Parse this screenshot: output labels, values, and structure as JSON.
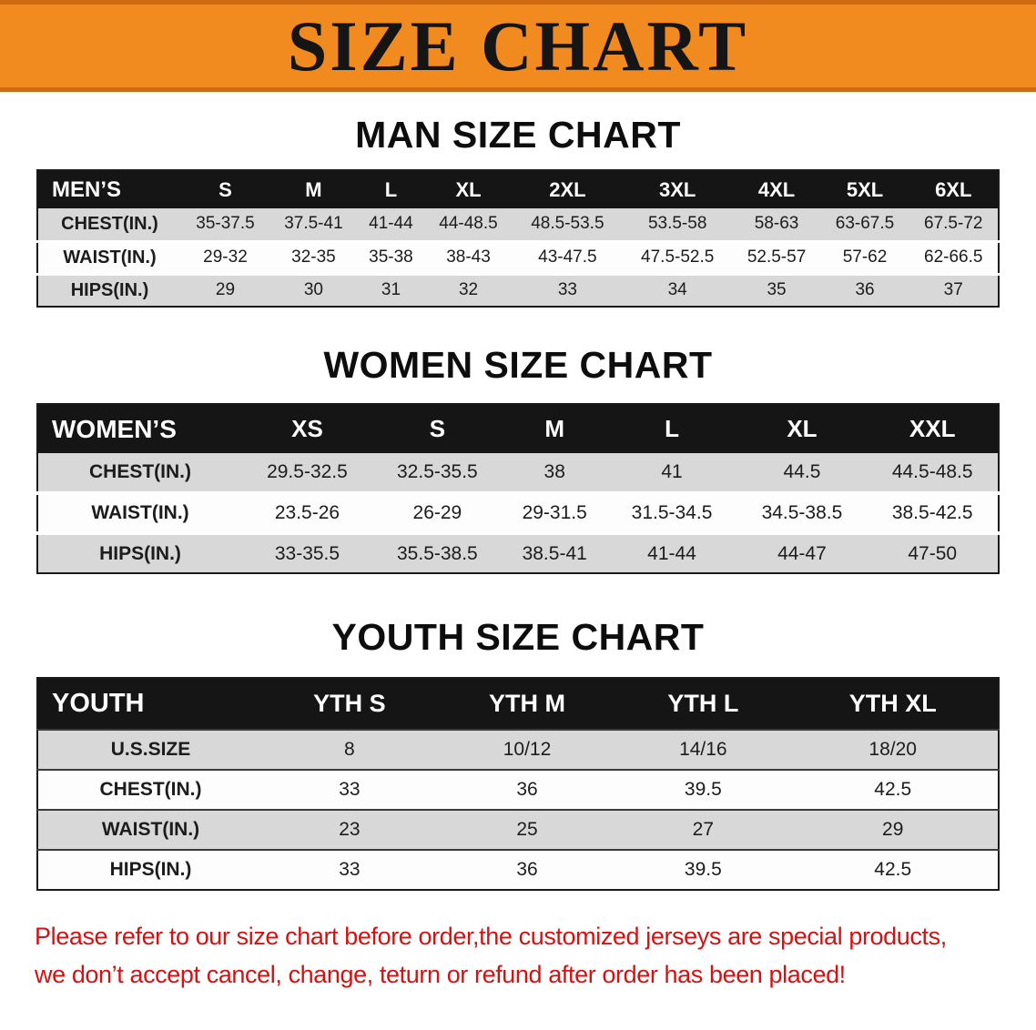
{
  "banner": {
    "title": "SIZE CHART"
  },
  "colors": {
    "banner_bg": "#f18a1f",
    "table_header_bg": "#151515",
    "row_alt_bg": "#d8d8d8",
    "disclaimer_red": "#d51111"
  },
  "sections": [
    {
      "heading": "MAN SIZE CHART",
      "table": {
        "label_header": "MEN’S",
        "columns": [
          "S",
          "M",
          "L",
          "XL",
          "2XL",
          "3XL",
          "4XL",
          "5XL",
          "6XL"
        ],
        "rows": [
          {
            "label": "CHEST(IN.)",
            "values": [
              "35-37.5",
              "37.5-41",
              "41-44",
              "44-48.5",
              "48.5-53.5",
              "53.5-58",
              "58-63",
              "63-67.5",
              "67.5-72"
            ]
          },
          {
            "label": "WAIST(IN.)",
            "values": [
              "29-32",
              "32-35",
              "35-38",
              "38-43",
              "43-47.5",
              "47.5-52.5",
              "52.5-57",
              "57-62",
              "62-66.5"
            ]
          },
          {
            "label": "HIPS(IN.)",
            "values": [
              "29",
              "30",
              "31",
              "32",
              "33",
              "34",
              "35",
              "36",
              "37"
            ]
          }
        ]
      }
    },
    {
      "heading": "WOMEN SIZE CHART",
      "table": {
        "label_header": "WOMEN’S",
        "columns": [
          "XS",
          "S",
          "M",
          "L",
          "XL",
          "XXL"
        ],
        "rows": [
          {
            "label": "CHEST(IN.)",
            "values": [
              "29.5-32.5",
              "32.5-35.5",
              "38",
              "41",
              "44.5",
              "44.5-48.5"
            ]
          },
          {
            "label": "WAIST(IN.)",
            "values": [
              "23.5-26",
              "26-29",
              "29-31.5",
              "31.5-34.5",
              "34.5-38.5",
              "38.5-42.5"
            ]
          },
          {
            "label": "HIPS(IN.)",
            "values": [
              "33-35.5",
              "35.5-38.5",
              "38.5-41",
              "41-44",
              "44-47",
              "47-50"
            ]
          }
        ]
      }
    },
    {
      "heading": "YOUTH SIZE CHART",
      "table": {
        "label_header": "YOUTH",
        "columns": [
          "YTH S",
          "YTH M",
          "YTH L",
          "YTH XL"
        ],
        "rows": [
          {
            "label": "U.S.SIZE",
            "values": [
              "8",
              "10/12",
              "14/16",
              "18/20"
            ]
          },
          {
            "label": "CHEST(IN.)",
            "values": [
              "33",
              "36",
              "39.5",
              "42.5"
            ]
          },
          {
            "label": "WAIST(IN.)",
            "values": [
              "23",
              "25",
              "27",
              "29"
            ]
          },
          {
            "label": "HIPS(IN.)",
            "values": [
              "33",
              "36",
              "39.5",
              "42.5"
            ]
          }
        ]
      }
    }
  ],
  "disclaimer": {
    "line1": "Please refer to our size chart before order,the customized jerseys are special products,",
    "line2": "we don’t accept cancel, change, teturn or refund after order has been placed!"
  }
}
